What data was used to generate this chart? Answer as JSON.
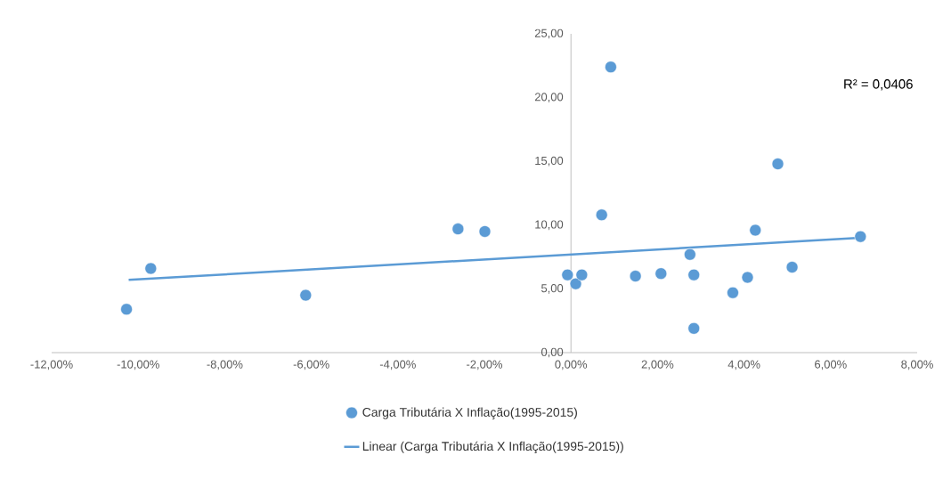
{
  "chart_data": {
    "type": "scatter",
    "xlim": [
      -12,
      8
    ],
    "ylim": [
      0,
      25
    ],
    "xticks": [
      {
        "value": -12,
        "label": "-12,00%"
      },
      {
        "value": -10,
        "label": "-10,00%"
      },
      {
        "value": -8,
        "label": "-8,00%"
      },
      {
        "value": -6,
        "label": "-6,00%"
      },
      {
        "value": -4,
        "label": "-4,00%"
      },
      {
        "value": -2,
        "label": "-2,00%"
      },
      {
        "value": 0,
        "label": "0,00%"
      },
      {
        "value": 2,
        "label": "2,00%"
      },
      {
        "value": 4,
        "label": "4,00%"
      },
      {
        "value": 6,
        "label": "6,00%"
      },
      {
        "value": 8,
        "label": "8,00%"
      }
    ],
    "yticks": [
      {
        "value": 0,
        "label": "0,00"
      },
      {
        "value": 5,
        "label": "5,00"
      },
      {
        "value": 10,
        "label": "10,00"
      },
      {
        "value": 15,
        "label": "15,00"
      },
      {
        "value": 20,
        "label": "20,00"
      },
      {
        "value": 25,
        "label": "25,00"
      }
    ],
    "grid": false,
    "legend": "bottom",
    "marker": "circle",
    "annotations": [
      "R² = 0,0406"
    ],
    "series": [
      {
        "name": "Carga Tributária X Inflação(1995-2015)",
        "color": "#5b9bd5",
        "x": [
          -10.27,
          -9.71,
          -6.13,
          -2.61,
          -1.99,
          -0.08,
          0.11,
          0.25,
          0.71,
          0.92,
          1.49,
          2.08,
          2.75,
          2.84,
          2.84,
          3.74,
          4.08,
          4.26,
          4.78,
          5.11,
          6.69
        ],
        "values": [
          3.4,
          6.6,
          4.5,
          9.7,
          9.5,
          6.1,
          5.4,
          6.1,
          10.8,
          22.4,
          6.0,
          6.2,
          7.7,
          6.1,
          1.9,
          4.7,
          5.9,
          9.6,
          14.8,
          6.7,
          9.1
        ]
      },
      {
        "name": "Linear (Carga Tributária X Inflação(1995-2015))",
        "color": "#5b9bd5",
        "type": "line",
        "line_style": "solid",
        "marker": "none",
        "x": [
          -10.22,
          6.69
        ],
        "values": [
          5.7,
          9.0
        ]
      }
    ]
  }
}
